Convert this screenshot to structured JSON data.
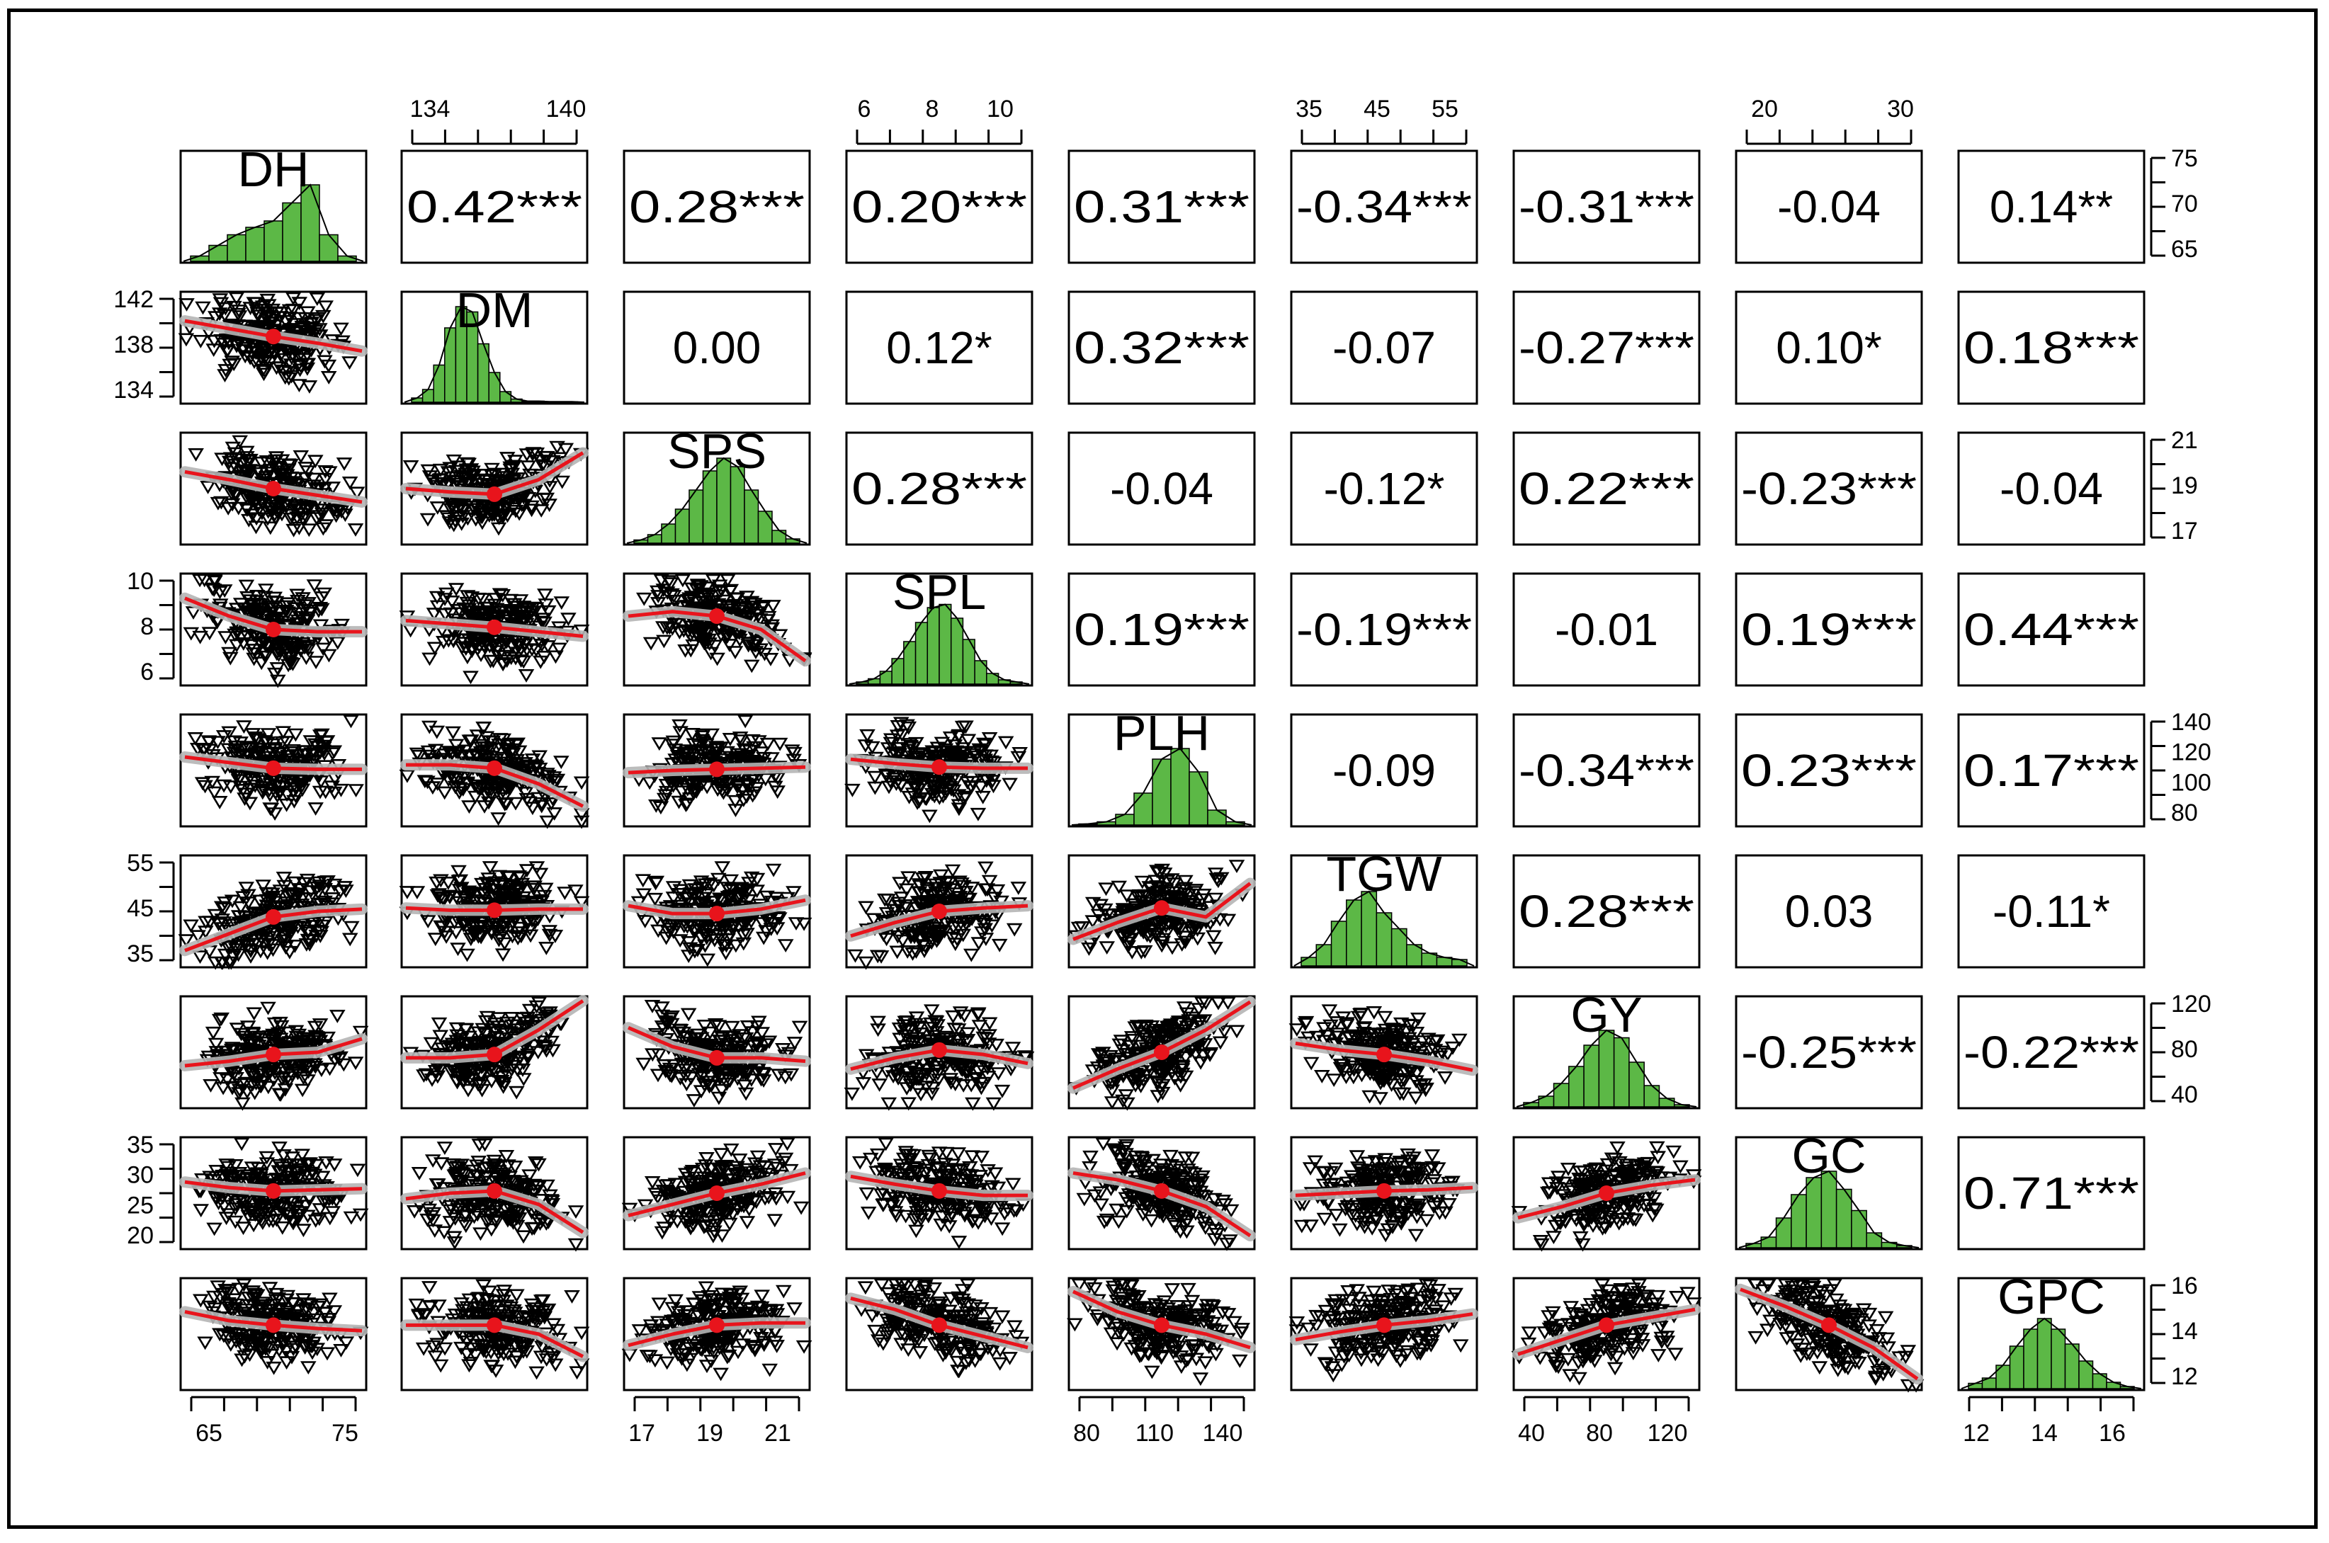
{
  "chart_data": {
    "type": "pairs",
    "variables": [
      "DH",
      "DM",
      "SPS",
      "SPL",
      "PLH",
      "TGW",
      "GY",
      "GC",
      "GPC"
    ],
    "correlations": [
      {
        "row": 0,
        "col": 1,
        "label": "0.42***"
      },
      {
        "row": 0,
        "col": 2,
        "label": "0.28***"
      },
      {
        "row": 0,
        "col": 3,
        "label": "0.20***"
      },
      {
        "row": 0,
        "col": 4,
        "label": "0.31***"
      },
      {
        "row": 0,
        "col": 5,
        "label": "-0.34***"
      },
      {
        "row": 0,
        "col": 6,
        "label": "-0.31***"
      },
      {
        "row": 0,
        "col": 7,
        "label": "-0.04"
      },
      {
        "row": 0,
        "col": 8,
        "label": "0.14**"
      },
      {
        "row": 1,
        "col": 2,
        "label": "0.00"
      },
      {
        "row": 1,
        "col": 3,
        "label": "0.12*"
      },
      {
        "row": 1,
        "col": 4,
        "label": "0.32***"
      },
      {
        "row": 1,
        "col": 5,
        "label": "-0.07"
      },
      {
        "row": 1,
        "col": 6,
        "label": "-0.27***"
      },
      {
        "row": 1,
        "col": 7,
        "label": "0.10*"
      },
      {
        "row": 1,
        "col": 8,
        "label": "0.18***"
      },
      {
        "row": 2,
        "col": 3,
        "label": "0.28***"
      },
      {
        "row": 2,
        "col": 4,
        "label": "-0.04"
      },
      {
        "row": 2,
        "col": 5,
        "label": "-0.12*"
      },
      {
        "row": 2,
        "col": 6,
        "label": "0.22***"
      },
      {
        "row": 2,
        "col": 7,
        "label": "-0.23***"
      },
      {
        "row": 2,
        "col": 8,
        "label": "-0.04"
      },
      {
        "row": 3,
        "col": 4,
        "label": "0.19***"
      },
      {
        "row": 3,
        "col": 5,
        "label": "-0.19***"
      },
      {
        "row": 3,
        "col": 6,
        "label": "-0.01"
      },
      {
        "row": 3,
        "col": 7,
        "label": "0.19***"
      },
      {
        "row": 3,
        "col": 8,
        "label": "0.44***"
      },
      {
        "row": 4,
        "col": 5,
        "label": "-0.09"
      },
      {
        "row": 4,
        "col": 6,
        "label": "-0.34***"
      },
      {
        "row": 4,
        "col": 7,
        "label": "0.23***"
      },
      {
        "row": 4,
        "col": 8,
        "label": "0.17***"
      },
      {
        "row": 5,
        "col": 6,
        "label": "0.28***"
      },
      {
        "row": 5,
        "col": 7,
        "label": "0.03"
      },
      {
        "row": 5,
        "col": 8,
        "label": "-0.11*"
      },
      {
        "row": 6,
        "col": 7,
        "label": "-0.25***"
      },
      {
        "row": 6,
        "col": 8,
        "label": "-0.22***"
      },
      {
        "row": 7,
        "col": 8,
        "label": "0.71***"
      }
    ],
    "histograms": [
      [
        0.05,
        0.15,
        0.25,
        0.32,
        0.38,
        0.55,
        0.72,
        0.25,
        0.05
      ],
      [
        0.04,
        0.12,
        0.35,
        0.7,
        0.9,
        0.85,
        0.55,
        0.28,
        0.1,
        0.03,
        0.01,
        0.01,
        0.005,
        0.005,
        0.005
      ],
      [
        0.03,
        0.08,
        0.18,
        0.32,
        0.5,
        0.68,
        0.8,
        0.72,
        0.5,
        0.3,
        0.12,
        0.04
      ],
      [
        0.02,
        0.05,
        0.12,
        0.24,
        0.4,
        0.58,
        0.72,
        0.75,
        0.62,
        0.42,
        0.22,
        0.1,
        0.04,
        0.02
      ],
      [
        0.01,
        0.03,
        0.1,
        0.3,
        0.62,
        0.72,
        0.5,
        0.14,
        0.03
      ],
      [
        0.08,
        0.2,
        0.42,
        0.62,
        0.7,
        0.5,
        0.35,
        0.2,
        0.12,
        0.08,
        0.06
      ],
      [
        0.04,
        0.1,
        0.22,
        0.38,
        0.58,
        0.72,
        0.65,
        0.42,
        0.2,
        0.08,
        0.02
      ],
      [
        0.04,
        0.1,
        0.28,
        0.5,
        0.66,
        0.72,
        0.55,
        0.35,
        0.14,
        0.05,
        0.02
      ],
      [
        0.05,
        0.1,
        0.22,
        0.4,
        0.56,
        0.66,
        0.56,
        0.42,
        0.26,
        0.14,
        0.06,
        0.02
      ]
    ],
    "loess": [
      {
        "row": 1,
        "col": 0,
        "y": [
          0.26,
          0.33,
          0.4,
          0.46,
          0.53
        ]
      },
      {
        "row": 2,
        "col": 0,
        "y": [
          0.35,
          0.42,
          0.5,
          0.56,
          0.62
        ]
      },
      {
        "row": 2,
        "col": 1,
        "y": [
          0.5,
          0.53,
          0.55,
          0.42,
          0.18
        ]
      },
      {
        "row": 3,
        "col": 0,
        "y": [
          0.22,
          0.38,
          0.5,
          0.52,
          0.52
        ]
      },
      {
        "row": 3,
        "col": 1,
        "y": [
          0.42,
          0.45,
          0.48,
          0.52,
          0.56
        ]
      },
      {
        "row": 3,
        "col": 2,
        "y": [
          0.38,
          0.34,
          0.38,
          0.5,
          0.78
        ]
      },
      {
        "row": 4,
        "col": 0,
        "y": [
          0.38,
          0.43,
          0.48,
          0.49,
          0.49
        ]
      },
      {
        "row": 4,
        "col": 1,
        "y": [
          0.45,
          0.45,
          0.48,
          0.62,
          0.82
        ]
      },
      {
        "row": 4,
        "col": 2,
        "y": [
          0.52,
          0.5,
          0.49,
          0.48,
          0.47
        ]
      },
      {
        "row": 4,
        "col": 3,
        "y": [
          0.4,
          0.44,
          0.47,
          0.48,
          0.48
        ]
      },
      {
        "row": 5,
        "col": 0,
        "y": [
          0.85,
          0.7,
          0.55,
          0.5,
          0.48
        ]
      },
      {
        "row": 5,
        "col": 1,
        "y": [
          0.47,
          0.49,
          0.49,
          0.48,
          0.48
        ]
      },
      {
        "row": 5,
        "col": 2,
        "y": [
          0.45,
          0.52,
          0.52,
          0.48,
          0.4
        ]
      },
      {
        "row": 5,
        "col": 3,
        "y": [
          0.72,
          0.6,
          0.5,
          0.47,
          0.45
        ]
      },
      {
        "row": 5,
        "col": 4,
        "y": [
          0.75,
          0.6,
          0.47,
          0.55,
          0.25
        ]
      },
      {
        "row": 6,
        "col": 0,
        "y": [
          0.62,
          0.58,
          0.52,
          0.5,
          0.38
        ]
      },
      {
        "row": 6,
        "col": 1,
        "y": [
          0.55,
          0.55,
          0.52,
          0.3,
          0.04
        ]
      },
      {
        "row": 6,
        "col": 2,
        "y": [
          0.28,
          0.45,
          0.55,
          0.55,
          0.58
        ]
      },
      {
        "row": 6,
        "col": 3,
        "y": [
          0.65,
          0.55,
          0.48,
          0.52,
          0.6
        ]
      },
      {
        "row": 6,
        "col": 4,
        "y": [
          0.82,
          0.65,
          0.5,
          0.3,
          0.05
        ]
      },
      {
        "row": 6,
        "col": 5,
        "y": [
          0.42,
          0.48,
          0.52,
          0.58,
          0.66
        ]
      },
      {
        "row": 7,
        "col": 0,
        "y": [
          0.4,
          0.45,
          0.48,
          0.47,
          0.46
        ]
      },
      {
        "row": 7,
        "col": 1,
        "y": [
          0.55,
          0.5,
          0.48,
          0.6,
          0.85
        ]
      },
      {
        "row": 7,
        "col": 2,
        "y": [
          0.7,
          0.6,
          0.5,
          0.42,
          0.32
        ]
      },
      {
        "row": 7,
        "col": 3,
        "y": [
          0.35,
          0.42,
          0.48,
          0.52,
          0.52
        ]
      },
      {
        "row": 7,
        "col": 4,
        "y": [
          0.32,
          0.38,
          0.48,
          0.62,
          0.88
        ]
      },
      {
        "row": 7,
        "col": 5,
        "y": [
          0.52,
          0.5,
          0.48,
          0.47,
          0.45
        ]
      },
      {
        "row": 7,
        "col": 6,
        "y": [
          0.72,
          0.62,
          0.5,
          0.43,
          0.38
        ]
      },
      {
        "row": 8,
        "col": 0,
        "y": [
          0.3,
          0.38,
          0.42,
          0.45,
          0.47
        ]
      },
      {
        "row": 8,
        "col": 1,
        "y": [
          0.42,
          0.42,
          0.42,
          0.5,
          0.7
        ]
      },
      {
        "row": 8,
        "col": 2,
        "y": [
          0.6,
          0.5,
          0.42,
          0.4,
          0.4
        ]
      },
      {
        "row": 8,
        "col": 3,
        "y": [
          0.18,
          0.28,
          0.42,
          0.52,
          0.62
        ]
      },
      {
        "row": 8,
        "col": 4,
        "y": [
          0.12,
          0.3,
          0.42,
          0.5,
          0.62
        ]
      },
      {
        "row": 8,
        "col": 5,
        "y": [
          0.55,
          0.48,
          0.42,
          0.38,
          0.32
        ]
      },
      {
        "row": 8,
        "col": 6,
        "y": [
          0.68,
          0.55,
          0.42,
          0.35,
          0.28
        ]
      },
      {
        "row": 8,
        "col": 7,
        "y": [
          0.1,
          0.25,
          0.42,
          0.62,
          0.9
        ]
      }
    ],
    "axes": {
      "top": [
        {
          "col": 1,
          "ticks": [
            "134",
            "140"
          ]
        },
        {
          "col": 3,
          "ticks": [
            "6",
            "8",
            "10"
          ]
        },
        {
          "col": 5,
          "ticks": [
            "35",
            "45",
            "55"
          ]
        },
        {
          "col": 7,
          "ticks": [
            "20",
            "30"
          ]
        }
      ],
      "bottom": [
        {
          "col": 0,
          "ticks": [
            "65",
            "75"
          ]
        },
        {
          "col": 2,
          "ticks": [
            "17",
            "19",
            "21"
          ]
        },
        {
          "col": 4,
          "ticks": [
            "80",
            "110",
            "140"
          ]
        },
        {
          "col": 6,
          "ticks": [
            "40",
            "80",
            "120"
          ]
        },
        {
          "col": 8,
          "ticks": [
            "12",
            "14",
            "16"
          ]
        }
      ],
      "left": [
        {
          "row": 1,
          "ticks": [
            "142",
            "138",
            "134"
          ]
        },
        {
          "row": 3,
          "ticks": [
            "10",
            "8",
            "6"
          ]
        },
        {
          "row": 5,
          "ticks": [
            "55",
            "45",
            "35"
          ]
        },
        {
          "row": 7,
          "ticks": [
            "35",
            "30",
            "25",
            "20"
          ]
        }
      ],
      "right": [
        {
          "row": 0,
          "ticks": [
            "75",
            "70",
            "65"
          ]
        },
        {
          "row": 2,
          "ticks": [
            "21",
            "19",
            "17"
          ]
        },
        {
          "row": 4,
          "ticks": [
            "140",
            "120",
            "100",
            "80"
          ]
        },
        {
          "row": 6,
          "ticks": [
            "120",
            "80",
            "40"
          ]
        },
        {
          "row": 8,
          "ticks": [
            "16",
            "14",
            "12"
          ]
        }
      ]
    },
    "colors": {
      "histogram": "#5cb846",
      "smooth": "#e8141c",
      "band": "#b5b5b5",
      "points": "#000000"
    }
  }
}
